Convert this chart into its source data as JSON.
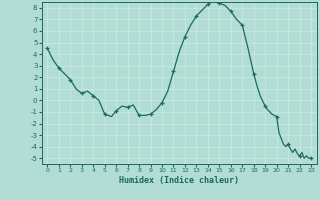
{
  "title": "",
  "xlabel": "Humidex (Indice chaleur)",
  "background_color": "#b2ddd4",
  "grid_color": "#c8e8e0",
  "line_color": "#1a6b5a",
  "xlim": [
    -0.5,
    23.5
  ],
  "ylim": [
    -5.5,
    8.5
  ],
  "yticks": [
    -5,
    -4,
    -3,
    -2,
    -1,
    0,
    1,
    2,
    3,
    4,
    5,
    6,
    7,
    8
  ],
  "xticks": [
    0,
    1,
    2,
    3,
    4,
    5,
    6,
    7,
    8,
    9,
    10,
    11,
    12,
    13,
    14,
    15,
    16,
    17,
    18,
    19,
    20,
    21,
    22,
    23
  ],
  "x": [
    0,
    0.5,
    1,
    1.5,
    2,
    2.5,
    3,
    3.5,
    4,
    4.5,
    5,
    5.3,
    5.6,
    6,
    6.5,
    7,
    7.5,
    8,
    8.5,
    9,
    9.5,
    10,
    10.5,
    11,
    11.5,
    12,
    12.5,
    13,
    13.5,
    14,
    14.3,
    14.6,
    15,
    15.5,
    16,
    16.5,
    17,
    17.5,
    18,
    18.3,
    18.6,
    19,
    19.2,
    19.4,
    19.6,
    19.8,
    20,
    20.2,
    20.4,
    20.6,
    20.8,
    21,
    21.2,
    21.4,
    21.6,
    21.8,
    22,
    22.2,
    22.4,
    22.6,
    22.8,
    23
  ],
  "y": [
    4.5,
    3.5,
    2.8,
    2.3,
    1.8,
    1.0,
    0.6,
    0.8,
    0.4,
    0.0,
    -1.2,
    -1.3,
    -1.4,
    -0.9,
    -0.5,
    -0.6,
    -0.4,
    -1.3,
    -1.3,
    -1.2,
    -0.8,
    -0.2,
    0.8,
    2.5,
    4.2,
    5.5,
    6.5,
    7.3,
    7.8,
    8.3,
    8.5,
    8.5,
    8.4,
    8.2,
    7.7,
    7.0,
    6.5,
    4.5,
    2.3,
    1.2,
    0.3,
    -0.5,
    -0.8,
    -1.0,
    -1.2,
    -1.3,
    -1.4,
    -2.8,
    -3.3,
    -3.8,
    -4.0,
    -3.8,
    -4.2,
    -4.5,
    -4.2,
    -4.6,
    -4.8,
    -4.5,
    -5.0,
    -4.8,
    -5.0,
    -5.0
  ],
  "marker_x": [
    0,
    1,
    2,
    3,
    4,
    5,
    6,
    7,
    8,
    9,
    10,
    11,
    12,
    13,
    14,
    15,
    16,
    17,
    18,
    19,
    20,
    21,
    22,
    23
  ],
  "marker_y": [
    4.5,
    2.8,
    1.8,
    0.6,
    0.4,
    -1.2,
    -0.9,
    -0.6,
    -1.3,
    -1.2,
    -0.2,
    2.5,
    5.5,
    7.3,
    8.3,
    8.4,
    7.7,
    6.5,
    2.3,
    -0.5,
    -1.4,
    -3.8,
    -4.8,
    -5.0
  ]
}
